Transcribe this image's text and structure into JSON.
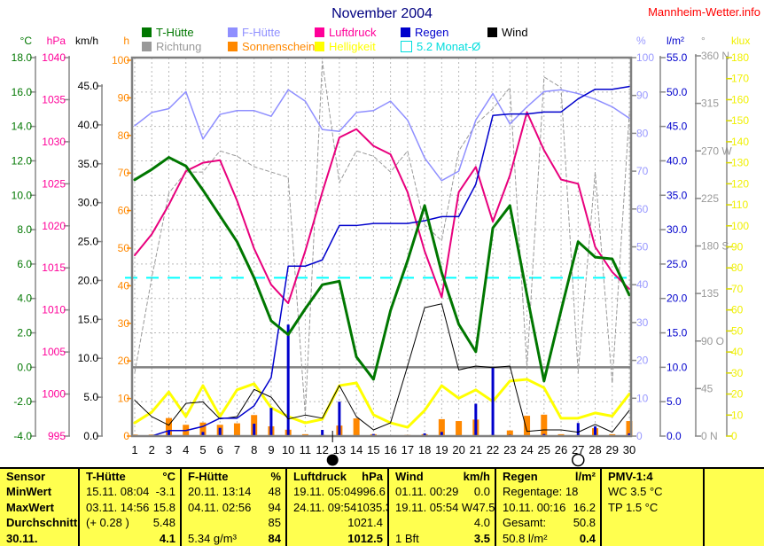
{
  "header": {
    "title": "November 2004",
    "site": "Mannheim-Wetter.info",
    "title_color": "#000080",
    "site_color": "#ff0000"
  },
  "legend": {
    "rows": [
      [
        {
          "label": "T-Hütte",
          "color": "#007700"
        },
        {
          "label": "F-Hütte",
          "color": "#8f8fff"
        },
        {
          "label": "Luftdruck",
          "color": "#ff0099"
        },
        {
          "label": "Regen",
          "color": "#0000cc"
        },
        {
          "label": "Wind",
          "color": "#000000"
        }
      ],
      [
        {
          "label": "Richtung",
          "color": "#999999"
        },
        {
          "label": "Sonnenschein",
          "color": "#ff8800"
        },
        {
          "label": "Helligkeit",
          "color": "#ffff00"
        },
        {
          "label": "5.2 Monat-Ø",
          "color": "#00dddd",
          "outline": true
        }
      ]
    ]
  },
  "chart_data": {
    "type": "line",
    "title": "November 2004",
    "x_label_days": [
      1,
      2,
      3,
      4,
      5,
      6,
      7,
      8,
      9,
      10,
      11,
      12,
      13,
      14,
      15,
      16,
      17,
      18,
      19,
      20,
      21,
      22,
      23,
      24,
      25,
      26,
      27,
      28,
      29,
      30
    ],
    "grid": "dashed, vertical per day, horizontal every 2 °C",
    "axes": [
      {
        "id": "temp",
        "unit": "°C",
        "min": -4,
        "max": 18,
        "step": 2,
        "decimals": 1,
        "color": "#007700"
      },
      {
        "id": "hpa",
        "unit": "hPa",
        "min": 995,
        "max": 1040,
        "step": 5,
        "decimals": 0,
        "color": "#ff0099"
      },
      {
        "id": "kmh",
        "unit": "km/h",
        "min": 0,
        "max": 45,
        "step": 5,
        "decimals": 1,
        "color": "#000000"
      },
      {
        "id": "h",
        "unit": "h",
        "min": 0,
        "max": 100,
        "step": 10,
        "decimals": 0,
        "color": "#ff8800"
      },
      {
        "id": "pct",
        "unit": "%",
        "min": 0,
        "max": 100,
        "step": 10,
        "decimals": 0,
        "color": "#9999ff"
      },
      {
        "id": "lm2",
        "unit": "l/m²",
        "min": 0,
        "max": 55,
        "step": 5,
        "decimals": 1,
        "color": "#0000cc"
      },
      {
        "id": "dir",
        "unit": "°",
        "min": 0,
        "max": 360,
        "step": 45,
        "decimals": 0,
        "color": "#999999",
        "labels": [
          "360 N",
          "315",
          "270 W",
          "225",
          "180 S",
          "135",
          "90 O",
          "45",
          "0 N"
        ]
      },
      {
        "id": "klux",
        "unit": "klux",
        "min": 0,
        "max": 180,
        "step": 10,
        "decimals": 0,
        "color": "#f0f000"
      }
    ],
    "series": [
      {
        "name": "Richtung",
        "axis": "dir",
        "color": "#9a9a9a",
        "width": 1,
        "dash": "4 3",
        "values": [
          60,
          150,
          230,
          250,
          250,
          270,
          265,
          255,
          250,
          245,
          20,
          355,
          240,
          270,
          265,
          250,
          270,
          200,
          185,
          270,
          295,
          310,
          330,
          65,
          340,
          330,
          60,
          250,
          50,
          305
        ]
      },
      {
        "name": "Helligkeit",
        "axis": "klux",
        "color": "#ffff00",
        "width": 3,
        "values": [
          6.3,
          11.4,
          21.0,
          9.3,
          24.0,
          9.3,
          22.0,
          24.9,
          13.5,
          9.3,
          6.3,
          8.0,
          24.0,
          25.3,
          10.1,
          6.3,
          4.2,
          12.2,
          24.0,
          18.0,
          22.0,
          16.5,
          26.2,
          27.0,
          23.0,
          8.5,
          8.5,
          11.0,
          9.5,
          20.0
        ]
      },
      {
        "name": "Sonnenschein",
        "axis": "h",
        "color": "#ff8800",
        "type": "bar",
        "values": [
          0.4,
          0.4,
          4.8,
          3.0,
          3.6,
          3.0,
          3.4,
          5.6,
          2.6,
          1.7,
          0.5,
          0.3,
          2.8,
          4.7,
          0.5,
          0,
          0.3,
          0.5,
          4.5,
          4.0,
          4.4,
          0.3,
          1.5,
          5.4,
          5.7,
          0.5,
          0.3,
          2.1,
          0.5,
          4.0
        ]
      },
      {
        "name": "Regen",
        "axis": "lm2",
        "color": "#0000cc",
        "type": "spike",
        "width": 3,
        "values": [
          0,
          0,
          0.8,
          0,
          0.6,
          1.2,
          0,
          1.8,
          4.1,
          16.2,
          0,
          0.9,
          5.0,
          0,
          0.3,
          0,
          0,
          0.4,
          0.6,
          0,
          4.7,
          10.0,
          0.2,
          0,
          0.3,
          0,
          1.9,
          1.4,
          0,
          0.4
        ]
      },
      {
        "name": "Wind",
        "axis": "kmh",
        "color": "#000000",
        "width": 1,
        "values": [
          4.6,
          2.5,
          1.4,
          4.2,
          4.4,
          2.2,
          2.5,
          6.0,
          5.0,
          2.2,
          2.7,
          2.3,
          6.5,
          2.5,
          0.8,
          1.7,
          9.0,
          16.5,
          17.0,
          8.5,
          9.0,
          8.8,
          9.0,
          0.6,
          0.8,
          0.8,
          0.5,
          1.5,
          0.5,
          3.3
        ]
      },
      {
        "name": "F-Hütte",
        "axis": "pct",
        "color": "#8f8fff",
        "width": 1.5,
        "values": [
          82,
          85.5,
          86.5,
          91,
          78.5,
          85,
          86,
          86,
          84.5,
          91.5,
          88.5,
          81,
          80.5,
          85.5,
          86,
          88.5,
          83.5,
          73.5,
          67.5,
          70,
          83.5,
          90.5,
          82.5,
          87,
          91,
          91.5,
          90.5,
          89,
          87,
          84
        ]
      },
      {
        "name": "Luftdruck",
        "axis": "hpa",
        "color": "#e8007d",
        "width": 2,
        "values": [
          1016.5,
          1019,
          1022.5,
          1026.5,
          1027.5,
          1027.8,
          1023,
          1017.3,
          1013,
          1010.8,
          1017,
          1024,
          1030.5,
          1031.5,
          1029.5,
          1028.5,
          1024,
          1017,
          1011.5,
          1024,
          1027,
          1020.5,
          1026,
          1033.5,
          1029,
          1025.5,
          1025,
          1017.5,
          1014.5,
          1012.5
        ]
      },
      {
        "name": "Regen-Summe",
        "axis": "lm2",
        "color": "#0000cc",
        "width": 1.5,
        "values": [
          0,
          0,
          0.8,
          0.8,
          1.4,
          2.6,
          2.6,
          4.4,
          8.5,
          24.7,
          24.7,
          25.6,
          30.6,
          30.6,
          30.9,
          30.9,
          30.9,
          31.3,
          31.9,
          31.9,
          36.6,
          46.6,
          46.8,
          46.8,
          47.1,
          47.1,
          49.0,
          50.4,
          50.4,
          50.8
        ]
      },
      {
        "name": "T-Hütte",
        "axis": "temp",
        "color": "#007700",
        "width": 3,
        "values": [
          10.9,
          11.5,
          12.2,
          11.7,
          10.3,
          8.8,
          7.3,
          5.2,
          2.7,
          1.9,
          3.4,
          4.8,
          5.0,
          0.6,
          -0.7,
          3.3,
          6.2,
          9.4,
          5.5,
          2.5,
          0.9,
          8.1,
          9.4,
          4.2,
          -0.8,
          3.3,
          7.3,
          6.4,
          6.3,
          4.2
        ]
      }
    ],
    "month_avg_line": {
      "label": "5.2 Monat-Ø",
      "value": 5.2,
      "axis": "temp",
      "color": "#00ffff"
    },
    "freeze_line": {
      "value": 0,
      "axis": "temp",
      "color": "#808080"
    },
    "moon_markers": [
      {
        "day": 12.6,
        "phase": "new"
      },
      {
        "day": 27,
        "phase": "full"
      }
    ]
  },
  "table": {
    "bg": "#ffff4f",
    "row_labels": [
      "Sensor",
      "MinWert",
      "MaxWert",
      "Durchschnitt",
      "30.11."
    ],
    "columns": [
      {
        "header": "T-Hütte",
        "unit": "°C",
        "rows": [
          [
            "15.11.  08:04",
            "-3.1"
          ],
          [
            "03.11.  14:56",
            "15.8"
          ],
          [
            "(+ 0.28 )",
            "5.48"
          ],
          [
            "",
            "4.1"
          ]
        ]
      },
      {
        "header": "F-Hütte",
        "unit": "%",
        "rows": [
          [
            "20.11.  13:14",
            "48"
          ],
          [
            "04.11.  02:56",
            "94"
          ],
          [
            "",
            "85"
          ],
          [
            "5.34 g/m³",
            "84"
          ]
        ]
      },
      {
        "header": "Luftdruck",
        "unit": "hPa",
        "rows": [
          [
            "19.11.  05:04",
            "996.6"
          ],
          [
            "24.11.  09:54",
            "1035.3"
          ],
          [
            "",
            "1021.4"
          ],
          [
            "",
            "1012.5"
          ]
        ]
      },
      {
        "header": "Wind",
        "unit": "km/h",
        "rows": [
          [
            "01.11.  00:29",
            "0.0"
          ],
          [
            "19.11.  05:54 W",
            "47.5"
          ],
          [
            "",
            "4.0"
          ],
          [
            "1 Bft",
            "3.5"
          ]
        ]
      },
      {
        "header": "Regen",
        "unit": "l/m²",
        "rows": [
          [
            "Regentage: 18",
            ""
          ],
          [
            "10.11.  00:16",
            "16.2"
          ],
          [
            "Gesamt:",
            "50.8"
          ],
          [
            "50.8 l/m²",
            "0.4"
          ]
        ]
      },
      {
        "header": "PMV-1:4",
        "unit": "",
        "rows": [
          [
            "WC 3.5 °C",
            ""
          ],
          [
            "TP 1.5 °C",
            ""
          ],
          [
            "",
            ""
          ],
          [
            "",
            ""
          ]
        ]
      },
      {
        "header": "",
        "unit": "",
        "rows": [
          [
            "",
            ""
          ],
          [
            "",
            ""
          ],
          [
            "",
            ""
          ],
          [
            "",
            ""
          ]
        ]
      }
    ]
  }
}
